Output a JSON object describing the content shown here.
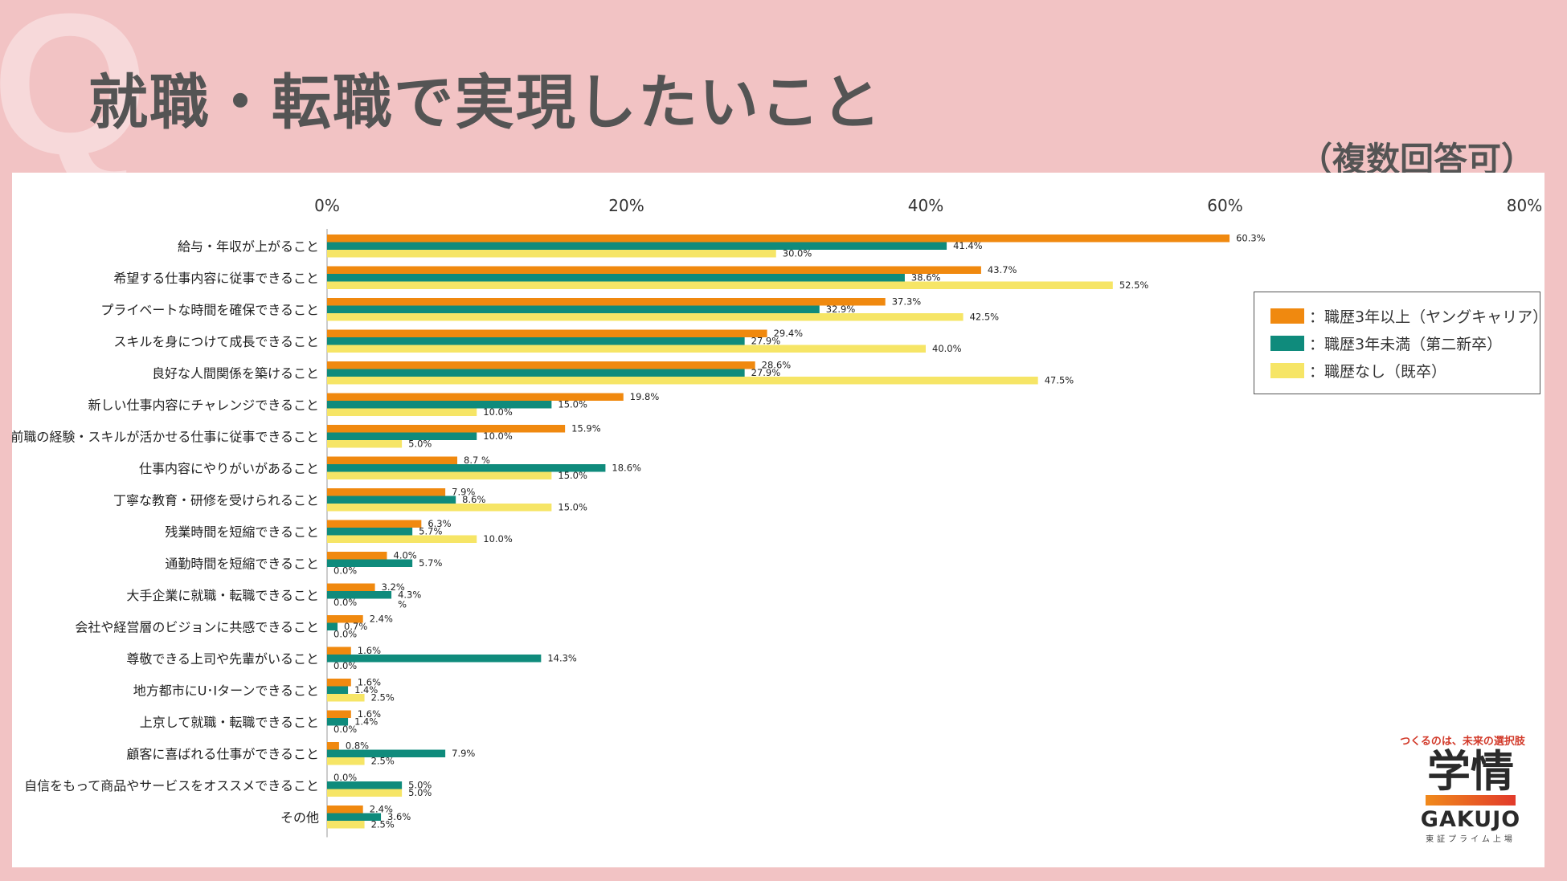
{
  "header": {
    "q_mark": "Q",
    "title": "就職・転職で実現したいこと",
    "subtitle": "（複数回答可）"
  },
  "legend": {
    "items": [
      {
        "label": "：職歴3年以上（ヤングキャリア）",
        "color": "#f0890f"
      },
      {
        "label": "：職歴3年未満（第二新卒）",
        "color": "#0f8b7c"
      },
      {
        "label": "：職歴なし（既卒）",
        "color": "#f6e566"
      }
    ]
  },
  "logo": {
    "tagline": "つくるのは、未来の選択肢",
    "name": "学情",
    "name_en": "GAKUJO",
    "listing": "東証プライム上場"
  },
  "chart_data": {
    "type": "bar",
    "orientation": "horizontal",
    "title": "就職・転職で実現したいこと",
    "xlabel": "",
    "ylabel": "",
    "xlim": [
      0,
      80
    ],
    "xticks": [
      "0%",
      "20%",
      "40%",
      "60%",
      "80%"
    ],
    "categories": [
      "給与・年収が上がること",
      "希望する仕事内容に従事できること",
      "プライベートな時間を確保できること",
      "スキルを身につけて成長できること",
      "良好な人間関係を築けること",
      "新しい仕事内容にチャレンジできること",
      "前職の経験・スキルが活かせる仕事に従事できること",
      "仕事内容にやりがいがあること",
      "丁寧な教育・研修を受けられること",
      "残業時間を短縮できること",
      "通勤時間を短縮できること",
      "大手企業に就職・転職できること",
      "会社や経営層のビジョンに共感できること",
      "尊敬できる上司や先輩がいること",
      "地方都市にU･Iターンできること",
      "上京して就職・転職できること",
      "顧客に喜ばれる仕事ができること",
      "自信をもって商品やサービスをオススメできること",
      "その他"
    ],
    "series": [
      {
        "name": "職歴3年以上（ヤングキャリア）",
        "values": [
          60.3,
          43.7,
          37.3,
          29.4,
          28.6,
          19.8,
          15.9,
          8.7,
          7.9,
          6.3,
          4.0,
          3.2,
          2.4,
          1.6,
          1.6,
          1.6,
          0.8,
          0.0,
          2.4
        ],
        "labels": [
          "60.3%",
          "43.7%",
          "37.3%",
          "29.4%",
          "28.6%",
          "19.8%",
          "15.9%",
          "8.7 %",
          "7.9%",
          "6.3%",
          "4.0%",
          "3.2%",
          "2.4%",
          "1.6%",
          "1.6%",
          "1.6%",
          "0.8%",
          "0.0%",
          "2.4%"
        ]
      },
      {
        "name": "職歴3年未満（第二新卒）",
        "values": [
          41.4,
          38.6,
          32.9,
          27.9,
          27.9,
          15.0,
          10.0,
          18.6,
          8.6,
          5.7,
          5.7,
          4.3,
          0.7,
          14.3,
          1.4,
          1.4,
          7.9,
          5.0,
          3.6
        ],
        "labels": [
          "41.4%",
          "38.6%",
          "32.9%",
          "27.9%",
          "27.9%",
          "15.0%",
          "10.0%",
          "18.6%",
          "8.6%",
          "5.7%",
          "5.7%",
          "4.3%",
          "0.7%",
          "14.3%",
          "1.4%",
          "1.4%",
          "7.9%",
          "5.0%",
          "3.6%"
        ]
      },
      {
        "name": "職歴なし（既卒）",
        "values": [
          30.0,
          52.5,
          42.5,
          40.0,
          47.5,
          10.0,
          5.0,
          15.0,
          15.0,
          10.0,
          0.0,
          0.0,
          0.0,
          0.0,
          2.5,
          0.0,
          2.5,
          5.0,
          2.5
        ],
        "labels": [
          "30.0%",
          "52.5%",
          "42.5%",
          "40.0%",
          "47.5%",
          "10.0%",
          "5.0%",
          "15.0%",
          "15.0%",
          "10.0%",
          "0.0%",
          "0.0%",
          "0.0%",
          "0.0%",
          "2.5%",
          "0.0%",
          "2.5%",
          "5.0%",
          "2.5%"
        ]
      }
    ],
    "stray_labels": [
      {
        "category_index": 11,
        "text": "%"
      }
    ],
    "legend_position": "right",
    "grid": false
  }
}
